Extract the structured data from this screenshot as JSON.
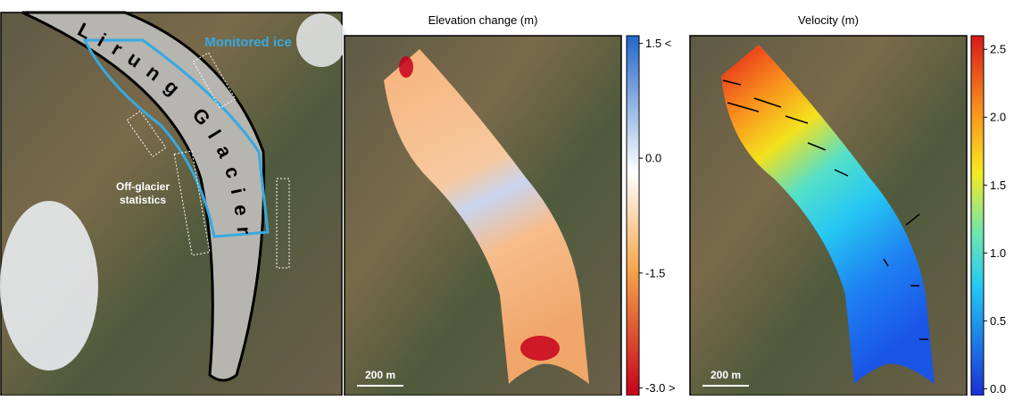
{
  "panels": [
    {
      "glacier_name": "Lirung Glacier",
      "monitored_label": "Monitored ice",
      "off_glacier_label": [
        "Off-glacier",
        "statistics"
      ]
    },
    {
      "title": "Elevation change (m)",
      "scale_bar": "200 m",
      "colorbar": {
        "range": [
          -3.1,
          1.6
        ],
        "ticks": [
          {
            "value": 1.5,
            "label": "1.5 <"
          },
          {
            "value": 0,
            "label": "0.0"
          },
          -1.5,
          {
            "value": -3,
            "label": "-3.0 >"
          }
        ]
      }
    },
    {
      "title": "Velocity (m)",
      "scale_bar": "200 m",
      "colorbar": {
        "range": [
          -0.05,
          2.6
        ],
        "ticks": [
          2.5,
          {
            "value": 2,
            "label": "2.0"
          },
          1.5,
          {
            "value": 1,
            "label": "1.0"
          },
          0.5,
          {
            "value": 0,
            "label": "0.0"
          }
        ]
      }
    }
  ]
}
